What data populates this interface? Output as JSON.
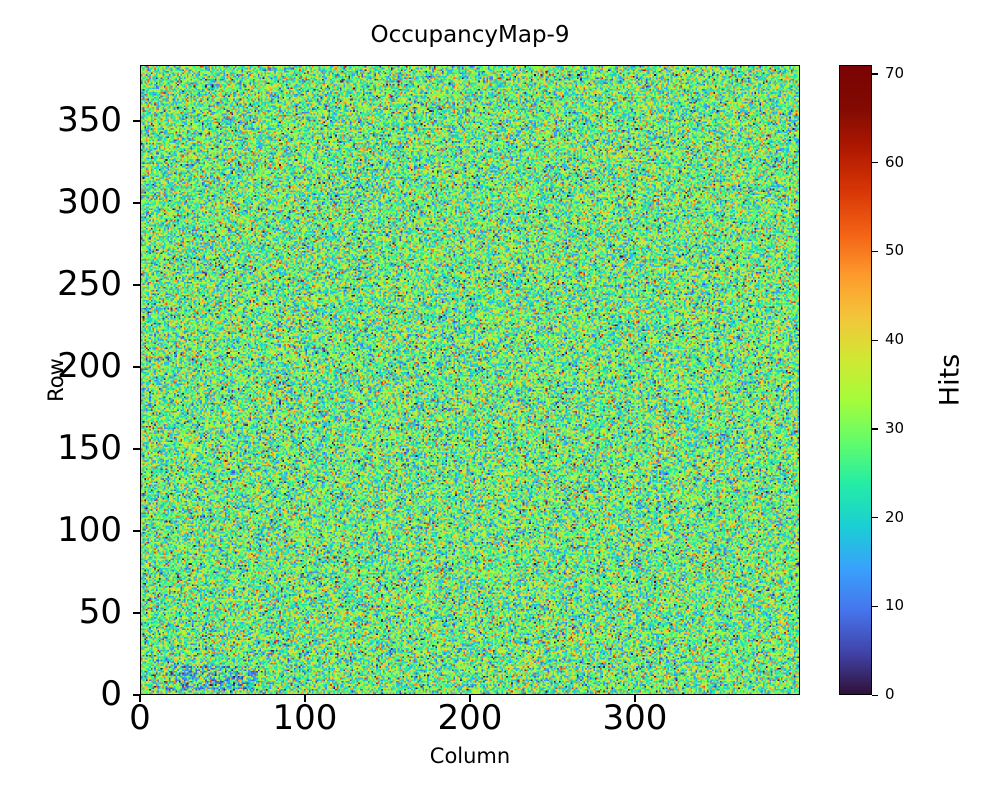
{
  "figure": {
    "title": "OccupancyMap-9",
    "background_color": "#ffffff",
    "text_color": "#000000"
  },
  "axes": {
    "xlabel": "Column",
    "ylabel": "Row",
    "x_ticks": [
      0,
      100,
      200,
      300
    ],
    "y_ticks": [
      0,
      50,
      100,
      150,
      200,
      250,
      300,
      350
    ]
  },
  "colorbar": {
    "label": "Hits",
    "ticks": [
      0,
      10,
      20,
      30,
      40,
      50,
      60,
      70
    ],
    "vmin": 0,
    "vmax": 71,
    "colormap": "turbo"
  },
  "chart_data": {
    "type": "heatmap",
    "title": "OccupancyMap-9",
    "xlabel": "Column",
    "ylabel": "Row",
    "value_label": "Hits",
    "n_cols": 400,
    "n_rows": 384,
    "x_range": [
      0,
      400
    ],
    "y_range": [
      0,
      384
    ],
    "value_range": [
      0,
      71
    ],
    "origin": "lower",
    "grid": false,
    "colormap": "turbo",
    "colormap_stops": [
      [
        0.0,
        48,
        18,
        59
      ],
      [
        0.0667,
        65,
        69,
        171
      ],
      [
        0.1333,
        70,
        117,
        237
      ],
      [
        0.2,
        57,
        162,
        252
      ],
      [
        0.2667,
        27,
        207,
        212
      ],
      [
        0.3333,
        36,
        236,
        166
      ],
      [
        0.4,
        97,
        252,
        108
      ],
      [
        0.4667,
        164,
        252,
        59
      ],
      [
        0.5333,
        209,
        232,
        52
      ],
      [
        0.6,
        243,
        198,
        58
      ],
      [
        0.6667,
        254,
        155,
        45
      ],
      [
        0.7333,
        243,
        99,
        21
      ],
      [
        0.8,
        217,
        56,
        6
      ],
      [
        0.8667,
        177,
        25,
        1
      ],
      [
        0.9333,
        130,
        10,
        2
      ],
      [
        1.0,
        122,
        4,
        3
      ]
    ],
    "distribution": {
      "kind": "random-noise-per-pixel",
      "mean_hits": 28,
      "stddev_hits": 11,
      "clip": [
        0,
        71
      ]
    },
    "features": [
      {
        "name": "low-occupancy-smudge",
        "description": "slightly darker cluster of pixels near bottom-left",
        "rows": [
          2,
          16
        ],
        "cols": [
          15,
          70
        ],
        "fraction": 0.33,
        "suppression_factor": 0.35
      }
    ],
    "seed": 9
  }
}
